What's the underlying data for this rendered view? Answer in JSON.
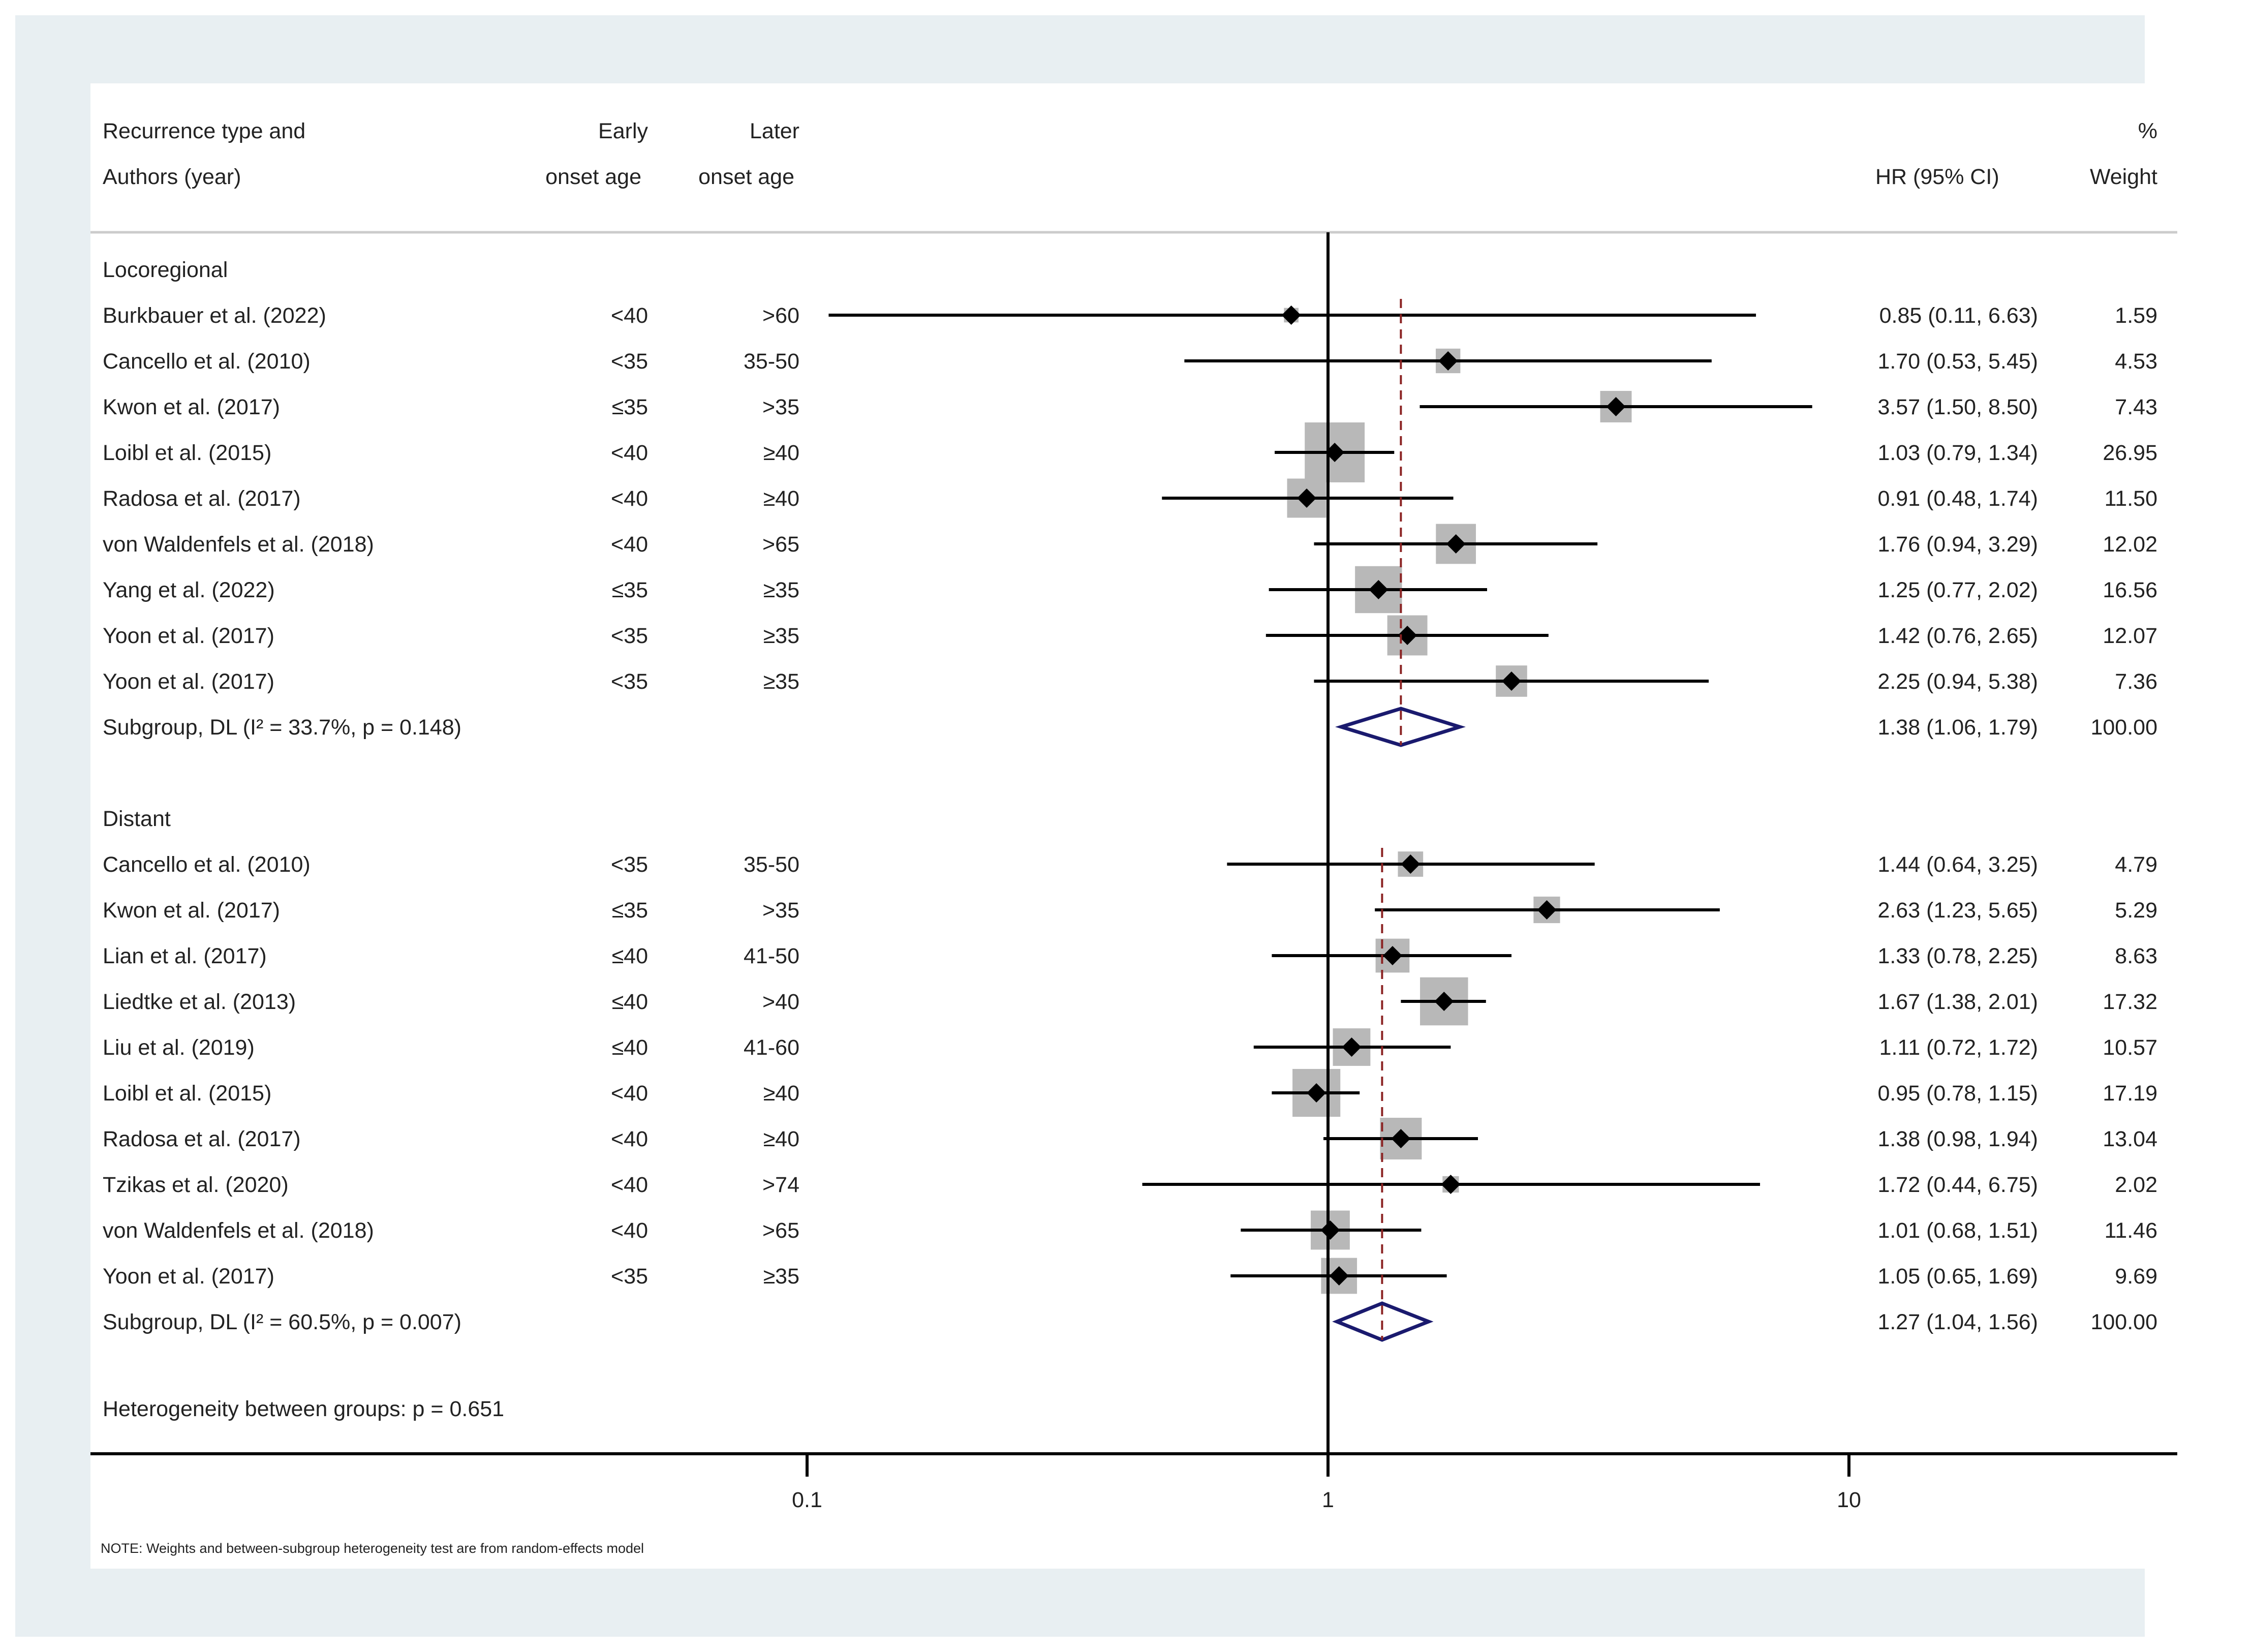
{
  "header": {
    "study_col": [
      "Recurrence type and",
      "Authors (year)"
    ],
    "early_col": [
      "Early",
      "onset age"
    ],
    "later_col": [
      "Later",
      "onset age"
    ],
    "hr_col": "HR (95% CI)",
    "weight_col": [
      "%",
      "Weight"
    ]
  },
  "chart_data": {
    "type": "forest",
    "x_scale": "log",
    "xlim": [
      0.1,
      10
    ],
    "x_ticks": [
      {
        "value": 0.1,
        "label": "0.1"
      },
      {
        "value": 1,
        "label": "1"
      },
      {
        "value": 10,
        "label": "10"
      }
    ],
    "null_line": 1,
    "groups": [
      {
        "name": "Locoregional",
        "studies": [
          {
            "study": "Burkbauer et al. (2022)",
            "early": "<40",
            "later": ">60",
            "hr": 0.85,
            "lo": 0.11,
            "hi": 6.63,
            "label": "0.85 (0.11, 6.63)",
            "weight": "1.59"
          },
          {
            "study": "Cancello et al. (2010)",
            "early": "<35",
            "later": "35-50",
            "hr": 1.7,
            "lo": 0.53,
            "hi": 5.45,
            "label": "1.70 (0.53, 5.45)",
            "weight": "4.53"
          },
          {
            "study": "Kwon et al. (2017)",
            "early": "≤35",
            "later": ">35",
            "hr": 3.57,
            "lo": 1.5,
            "hi": 8.5,
            "label": "3.57 (1.50, 8.50)",
            "weight": "7.43"
          },
          {
            "study": "Loibl et al. (2015)",
            "early": "<40",
            "later": "≥40",
            "hr": 1.03,
            "lo": 0.79,
            "hi": 1.34,
            "label": "1.03 (0.79, 1.34)",
            "weight": "26.95"
          },
          {
            "study": "Radosa et al. (2017)",
            "early": "<40",
            "later": "≥40",
            "hr": 0.91,
            "lo": 0.48,
            "hi": 1.74,
            "label": "0.91 (0.48, 1.74)",
            "weight": "11.50"
          },
          {
            "study": "von Waldenfels et al. (2018)",
            "early": "<40",
            "later": ">65",
            "hr": 1.76,
            "lo": 0.94,
            "hi": 3.29,
            "label": "1.76 (0.94, 3.29)",
            "weight": "12.02"
          },
          {
            "study": "Yang et al. (2022)",
            "early": "≤35",
            "later": "≥35",
            "hr": 1.25,
            "lo": 0.77,
            "hi": 2.02,
            "label": "1.25 (0.77, 2.02)",
            "weight": "16.56"
          },
          {
            "study": "Yoon et al. (2017)",
            "early": "<35",
            "later": "≥35",
            "hr": 1.42,
            "lo": 0.76,
            "hi": 2.65,
            "label": "1.42 (0.76, 2.65)",
            "weight": "12.07"
          },
          {
            "study": "Yoon et al. (2017)",
            "early": "<35",
            "later": "≥35",
            "hr": 2.25,
            "lo": 0.94,
            "hi": 5.38,
            "label": "2.25 (0.94, 5.38)",
            "weight": "7.36"
          }
        ],
        "subgroup": {
          "text": "Subgroup, DL (I² = 33.7%, p = 0.148)",
          "hr": 1.38,
          "lo": 1.06,
          "hi": 1.79,
          "label": "1.38 (1.06, 1.79)",
          "weight": "100.00"
        }
      },
      {
        "name": "Distant",
        "studies": [
          {
            "study": "Cancello et al. (2010)",
            "early": "<35",
            "later": "35-50",
            "hr": 1.44,
            "lo": 0.64,
            "hi": 3.25,
            "label": "1.44 (0.64, 3.25)",
            "weight": "4.79"
          },
          {
            "study": "Kwon et al. (2017)",
            "early": "≤35",
            "later": ">35",
            "hr": 2.63,
            "lo": 1.23,
            "hi": 5.65,
            "label": "2.63 (1.23, 5.65)",
            "weight": "5.29"
          },
          {
            "study": "Lian et al. (2017)",
            "early": "≤40",
            "later": "41-50",
            "hr": 1.33,
            "lo": 0.78,
            "hi": 2.25,
            "label": "1.33 (0.78, 2.25)",
            "weight": "8.63"
          },
          {
            "study": "Liedtke et al. (2013)",
            "early": "≤40",
            "later": ">40",
            "hr": 1.67,
            "lo": 1.38,
            "hi": 2.01,
            "label": "1.67 (1.38, 2.01)",
            "weight": "17.32"
          },
          {
            "study": "Liu et al. (2019)",
            "early": "≤40",
            "later": "41-60",
            "hr": 1.11,
            "lo": 0.72,
            "hi": 1.72,
            "label": "1.11 (0.72, 1.72)",
            "weight": "10.57"
          },
          {
            "study": "Loibl et al. (2015)",
            "early": "<40",
            "later": "≥40",
            "hr": 0.95,
            "lo": 0.78,
            "hi": 1.15,
            "label": "0.95 (0.78, 1.15)",
            "weight": "17.19"
          },
          {
            "study": "Radosa et al. (2017)",
            "early": "<40",
            "later": "≥40",
            "hr": 1.38,
            "lo": 0.98,
            "hi": 1.94,
            "label": "1.38 (0.98, 1.94)",
            "weight": "13.04"
          },
          {
            "study": "Tzikas et al. (2020)",
            "early": "<40",
            "later": ">74",
            "hr": 1.72,
            "lo": 0.44,
            "hi": 6.75,
            "label": "1.72 (0.44, 6.75)",
            "weight": "2.02"
          },
          {
            "study": "von Waldenfels et al. (2018)",
            "early": "<40",
            "later": ">65",
            "hr": 1.01,
            "lo": 0.68,
            "hi": 1.51,
            "label": "1.01 (0.68, 1.51)",
            "weight": "11.46"
          },
          {
            "study": "Yoon et al. (2017)",
            "early": "<35",
            "later": "≥35",
            "hr": 1.05,
            "lo": 0.65,
            "hi": 1.69,
            "label": "1.05 (0.65, 1.69)",
            "weight": "9.69"
          }
        ],
        "subgroup": {
          "text": "Subgroup, DL (I² = 60.5%, p = 0.007)",
          "hr": 1.27,
          "lo": 1.04,
          "hi": 1.56,
          "label": "1.27 (1.04, 1.56)",
          "weight": "100.00"
        }
      }
    ],
    "heterogeneity": "Heterogeneity between groups: p = 0.651",
    "note": "NOTE: Weights and between-subgroup heterogeneity test are from random-effects model",
    "colors": {
      "ci_line": "#000000",
      "weight_box": "#b8b8b8",
      "point": "#000000",
      "diamond": "#1a1a6e",
      "pooled_line": "#8b2323",
      "background": "#e8eff2",
      "separator": "#cccccc"
    }
  }
}
